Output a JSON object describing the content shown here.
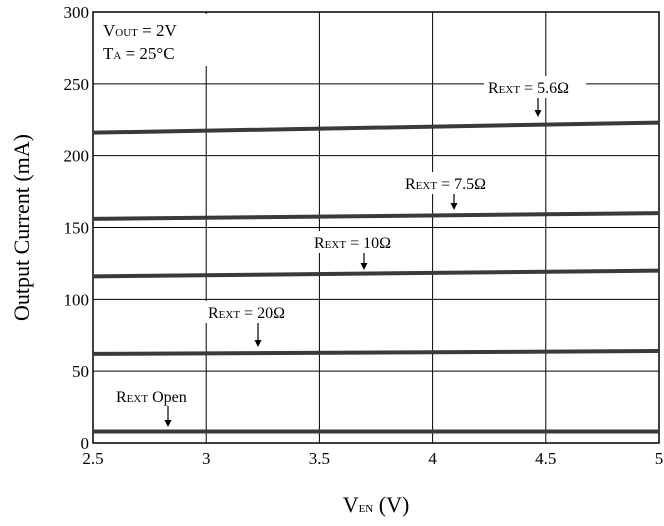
{
  "chart_data": {
    "type": "line",
    "xlabel": {
      "main": "V",
      "sub": "EN",
      "unit": " (V)"
    },
    "ylabel": "Output Current (mA)",
    "xlim": [
      2.5,
      5
    ],
    "ylim": [
      0,
      300
    ],
    "xticks": [
      "2.5",
      "3",
      "3.5",
      "4",
      "4.5",
      "5"
    ],
    "yticks": [
      "0",
      "50",
      "100",
      "150",
      "200",
      "250",
      "300"
    ],
    "grid": true,
    "conditions": [
      {
        "main": "V",
        "sub": "OUT",
        "rest": " = 2V"
      },
      {
        "main": "T",
        "sub": "A",
        "rest": " = 25°C"
      }
    ],
    "series": [
      {
        "name": {
          "main": "R",
          "sub": "EXT",
          "rest": " = 5.6Ω"
        },
        "x": [
          2.5,
          5
        ],
        "y": [
          216,
          223
        ]
      },
      {
        "name": {
          "main": "R",
          "sub": "EXT",
          "rest": " = 7.5Ω"
        },
        "x": [
          2.5,
          5
        ],
        "y": [
          156,
          160
        ]
      },
      {
        "name": {
          "main": "R",
          "sub": "EXT",
          "rest": " = 10Ω"
        },
        "x": [
          2.5,
          5
        ],
        "y": [
          116,
          120
        ]
      },
      {
        "name": {
          "main": "R",
          "sub": "EXT",
          "rest": " = 20Ω"
        },
        "x": [
          2.5,
          5
        ],
        "y": [
          62,
          64
        ]
      },
      {
        "name": {
          "main": "R",
          "sub": "EXT",
          "rest": " Open"
        },
        "x": [
          2.5,
          5
        ],
        "y": [
          8,
          8
        ]
      }
    ]
  }
}
